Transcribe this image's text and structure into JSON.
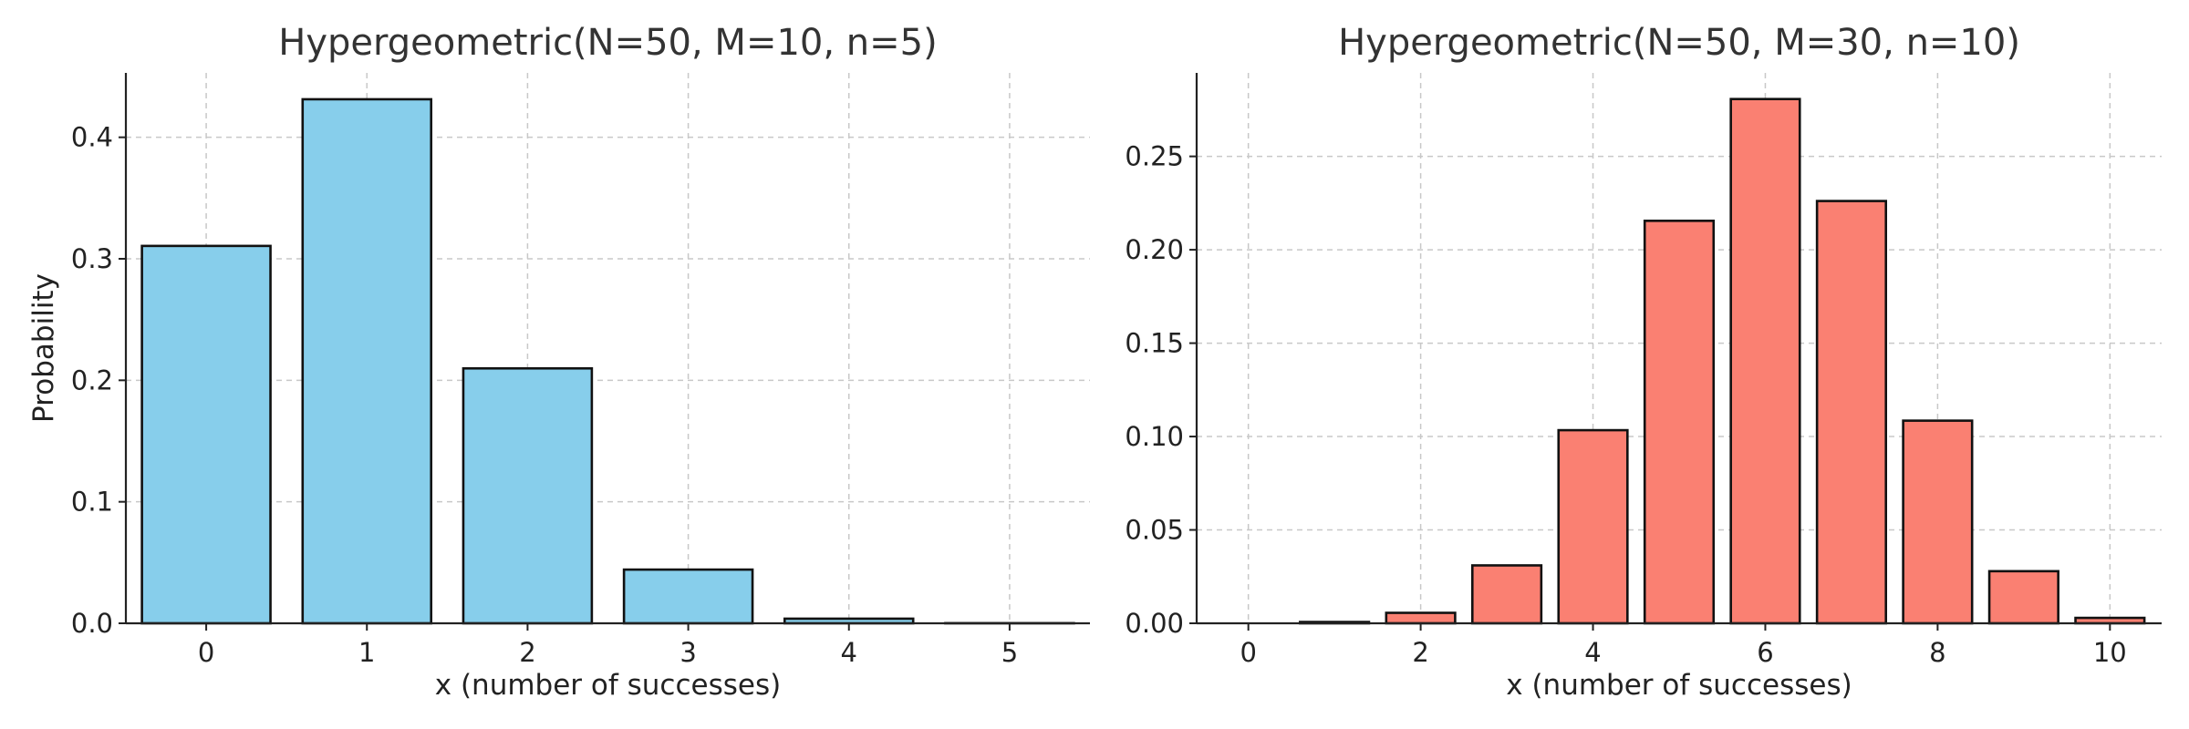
{
  "chart_data": [
    {
      "type": "bar",
      "title": "Hypergeometric(N=50, M=10, n=5)",
      "xlabel": "x (number of successes)",
      "ylabel": "Probability",
      "color": "#87CEEB",
      "x": [
        0,
        1,
        2,
        3,
        4,
        5
      ],
      "values": [
        0.3106,
        0.4313,
        0.2098,
        0.0442,
        0.0038,
        0.0001
      ],
      "xlim": [
        -0.5,
        5.5
      ],
      "ylim": [
        0,
        0.453
      ],
      "xticks": [
        0,
        1,
        2,
        3,
        4,
        5
      ],
      "xtick_labels": [
        "0",
        "1",
        "2",
        "3",
        "4",
        "5"
      ],
      "yticks": [
        0.0,
        0.1,
        0.2,
        0.3,
        0.4
      ],
      "ytick_labels": [
        "0.0",
        "0.1",
        "0.2",
        "0.3",
        "0.4"
      ],
      "grid": true
    },
    {
      "type": "bar",
      "title": "Hypergeometric(N=50, M=30, n=10)",
      "xlabel": "x (number of successes)",
      "ylabel": "",
      "color": "#FA8072",
      "x": [
        0,
        1,
        2,
        3,
        4,
        5,
        6,
        7,
        8,
        9,
        10
      ],
      "values": [
        0.0,
        0.0007,
        0.0056,
        0.031,
        0.1034,
        0.2155,
        0.2807,
        0.2261,
        0.1085,
        0.0279,
        0.0029
      ],
      "xlim": [
        -0.6,
        10.6
      ],
      "ylim": [
        0,
        0.2947
      ],
      "xticks": [
        0,
        2,
        4,
        6,
        8,
        10
      ],
      "xtick_labels": [
        "0",
        "2",
        "4",
        "6",
        "8",
        "10"
      ],
      "yticks": [
        0.0,
        0.05,
        0.1,
        0.15,
        0.2,
        0.25
      ],
      "ytick_labels": [
        "0.00",
        "0.05",
        "0.10",
        "0.15",
        "0.20",
        "0.25"
      ],
      "grid": true
    }
  ]
}
